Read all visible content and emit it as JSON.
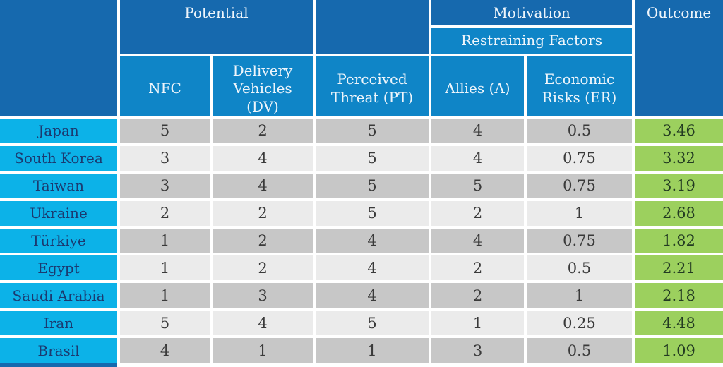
{
  "chart_data": {
    "type": "table",
    "group_headers": {
      "potential": "Potential",
      "motivation": "Motivation",
      "restraining_factors": "Restraining Factors",
      "outcome": "Outcome"
    },
    "column_headers": {
      "nfc": "NFC",
      "delivery_vehicles": "Delivery Vehicles (DV)",
      "perceived_threat": "Perceived Threat (PT)",
      "allies": "Allies (A)",
      "economic_risks": "Economic Risks (ER)"
    },
    "rows": [
      {
        "country": "Japan",
        "nfc": "5",
        "dv": "2",
        "pt": "5",
        "allies": "4",
        "er": "0.5",
        "outcome": "3.46"
      },
      {
        "country": "South Korea",
        "nfc": "3",
        "dv": "4",
        "pt": "5",
        "allies": "4",
        "er": "0.75",
        "outcome": "3.32"
      },
      {
        "country": "Taiwan",
        "nfc": "3",
        "dv": "4",
        "pt": "5",
        "allies": "5",
        "er": "0.75",
        "outcome": "3.19"
      },
      {
        "country": "Ukraine",
        "nfc": "2",
        "dv": "2",
        "pt": "5",
        "allies": "2",
        "er": "1",
        "outcome": "2.68"
      },
      {
        "country": "Türkiye",
        "nfc": "1",
        "dv": "2",
        "pt": "4",
        "allies": "4",
        "er": "0.75",
        "outcome": "1.82"
      },
      {
        "country": "Egypt",
        "nfc": "1",
        "dv": "2",
        "pt": "4",
        "allies": "2",
        "er": "0.5",
        "outcome": "2.21"
      },
      {
        "country": "Saudi Arabia",
        "nfc": "1",
        "dv": "3",
        "pt": "4",
        "allies": "2",
        "er": "1",
        "outcome": "2.18"
      },
      {
        "country": "Iran",
        "nfc": "5",
        "dv": "4",
        "pt": "5",
        "allies": "1",
        "er": "0.25",
        "outcome": "4.48"
      },
      {
        "country": "Brasil",
        "nfc": "4",
        "dv": "1",
        "pt": "1",
        "allies": "3",
        "er": "0.5",
        "outcome": "1.09"
      }
    ]
  },
  "colors": {
    "header_dark_blue": "#1669ae",
    "header_medium_blue": "#0f85c7",
    "header_text": "#eef5fb",
    "row_label_cyan": "#0cb2e8",
    "label_text": "#1b3a70",
    "row_gray_dark": "#c7c7c7",
    "row_gray_light": "#ebebeb",
    "value_text": "#3a3a3a",
    "outcome_green": "#9cd05e",
    "outcome_text": "#223a22"
  }
}
